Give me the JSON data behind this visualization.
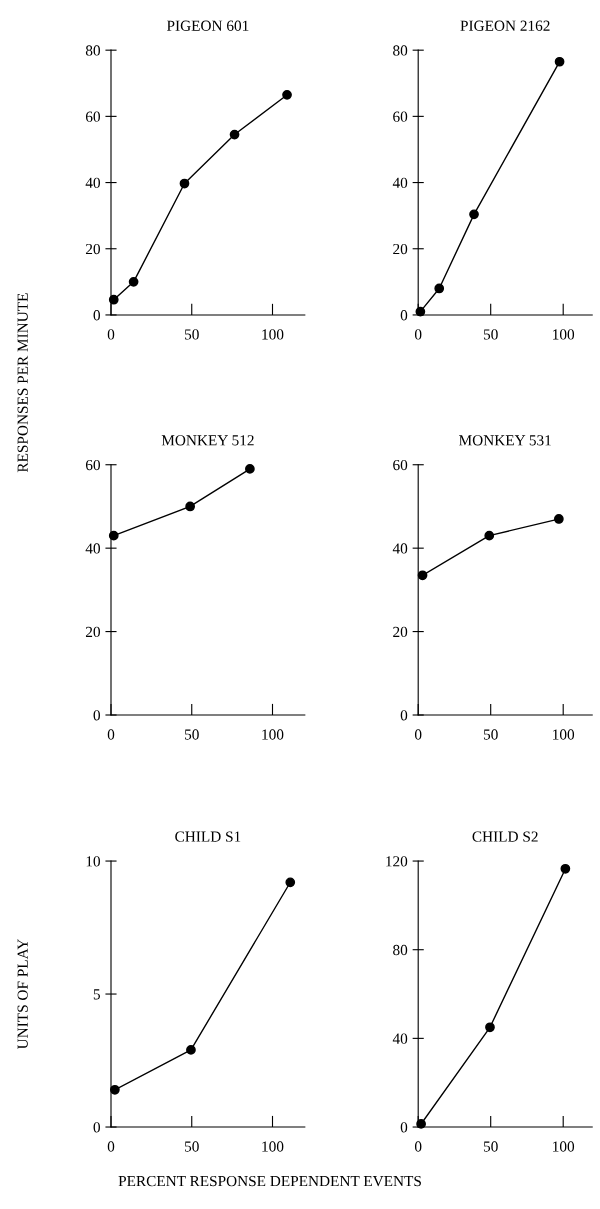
{
  "chart_data": [
    {
      "type": "line",
      "title": "PIGEON 601",
      "ylabel": "RESPONSES PER MINUTE",
      "x": [
        1.7,
        14,
        45.5,
        76.5,
        109
      ],
      "values": [
        4.6,
        10,
        39.7,
        54.5,
        66.5
      ],
      "color": "#000000",
      "marker": "circle",
      "line_style": "solid",
      "xlim": [
        0,
        120
      ],
      "xticks": [
        0,
        50,
        100
      ],
      "ylim": [
        0,
        80
      ],
      "yticks": [
        0,
        20,
        40,
        60,
        80
      ],
      "grid": false,
      "legend": false
    },
    {
      "type": "line",
      "title": "PIGEON 2162",
      "x": [
        1.5,
        14.5,
        38.5,
        97.5
      ],
      "values": [
        1,
        8,
        30.4,
        76.5
      ],
      "color": "#000000",
      "marker": "circle",
      "line_style": "solid",
      "xlim": [
        0,
        120
      ],
      "xticks": [
        0,
        50,
        100
      ],
      "ylim": [
        0,
        80
      ],
      "yticks": [
        0,
        20,
        40,
        60,
        80
      ],
      "grid": false,
      "legend": false
    },
    {
      "type": "line",
      "title": "MONKEY 512",
      "x": [
        1.7,
        49,
        86
      ],
      "values": [
        43,
        50,
        59
      ],
      "color": "#000000",
      "marker": "circle",
      "line_style": "solid",
      "xlim": [
        0,
        120
      ],
      "xticks": [
        0,
        50,
        100
      ],
      "ylim": [
        0,
        60
      ],
      "yticks": [
        0,
        20,
        40,
        60
      ],
      "grid": false,
      "legend": false
    },
    {
      "type": "line",
      "title": "MONKEY 531",
      "x": [
        3,
        49,
        97
      ],
      "values": [
        33.5,
        43,
        47
      ],
      "color": "#000000",
      "marker": "circle",
      "line_style": "solid",
      "xlim": [
        0,
        120
      ],
      "xticks": [
        0,
        50,
        100
      ],
      "ylim": [
        0,
        60
      ],
      "yticks": [
        0,
        20,
        40,
        60
      ],
      "grid": false,
      "legend": false
    },
    {
      "type": "line",
      "title": "CHILD S1",
      "ylabel": "UNITS OF PLAY",
      "xlabel": "PERCENT RESPONSE DEPENDENT EVENTS",
      "x": [
        2.4,
        49.5,
        111
      ],
      "values": [
        1.4,
        2.9,
        9.2
      ],
      "color": "#000000",
      "marker": "circle",
      "line_style": "solid",
      "xlim": [
        0,
        120
      ],
      "xticks": [
        0,
        50,
        100
      ],
      "ylim": [
        0,
        10
      ],
      "yticks": [
        0,
        5,
        10
      ],
      "grid": false,
      "legend": false
    },
    {
      "type": "line",
      "title": "CHILD S2",
      "x": [
        2,
        49.5,
        101.5
      ],
      "values": [
        1.4,
        45,
        116.5
      ],
      "color": "#000000",
      "marker": "circle",
      "line_style": "solid",
      "xlim": [
        0,
        120
      ],
      "xticks": [
        0,
        50,
        100
      ],
      "ylim": [
        0,
        120
      ],
      "yticks": [
        0,
        40,
        80,
        120
      ],
      "grid": false,
      "legend": false
    }
  ]
}
